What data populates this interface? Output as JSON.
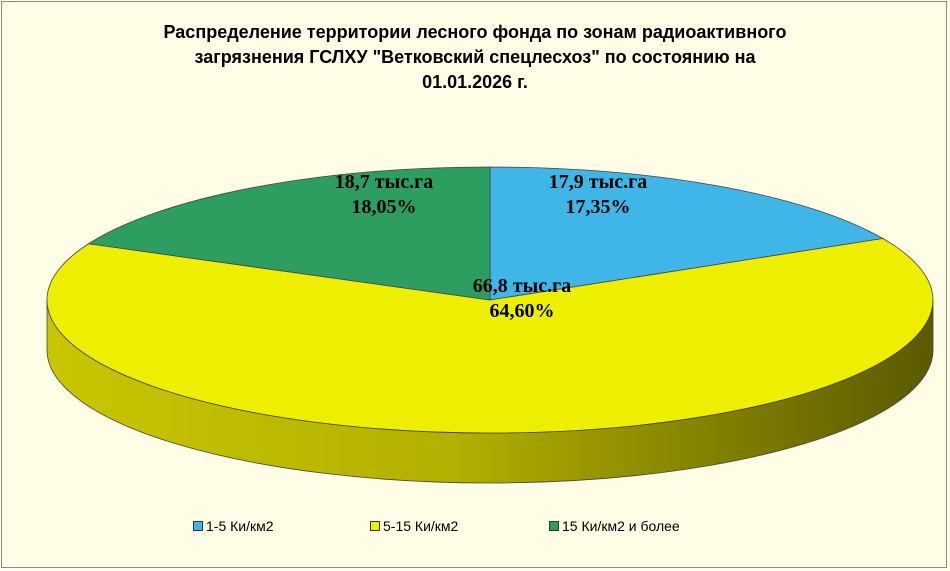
{
  "chart_data": {
    "type": "pie",
    "title_lines": [
      "Распределение  территории  лесного  фонда по зонам  радиоактивного",
      "загрязнения   ГСЛХУ  \"Ветковский  спецлесхоз\"  по  состоянию  на",
      "01.01.2026  г."
    ],
    "categories": [
      "1-5 Ки/км2",
      "5-15 Ки/км2",
      "15 Ки/км2 и более"
    ],
    "values": [
      17.35,
      64.6,
      18.05
    ],
    "data_labels": [
      [
        "17,9 тыс.га",
        "17,35%"
      ],
      [
        "66,8 тыс.га",
        "64,60%"
      ],
      [
        "18,7  тыс.га",
        "18,05%"
      ]
    ],
    "colors": [
      "#3fb5e8",
      "#eeee00",
      "#2e9e60"
    ],
    "legend_position": "bottom",
    "three_d": true
  }
}
